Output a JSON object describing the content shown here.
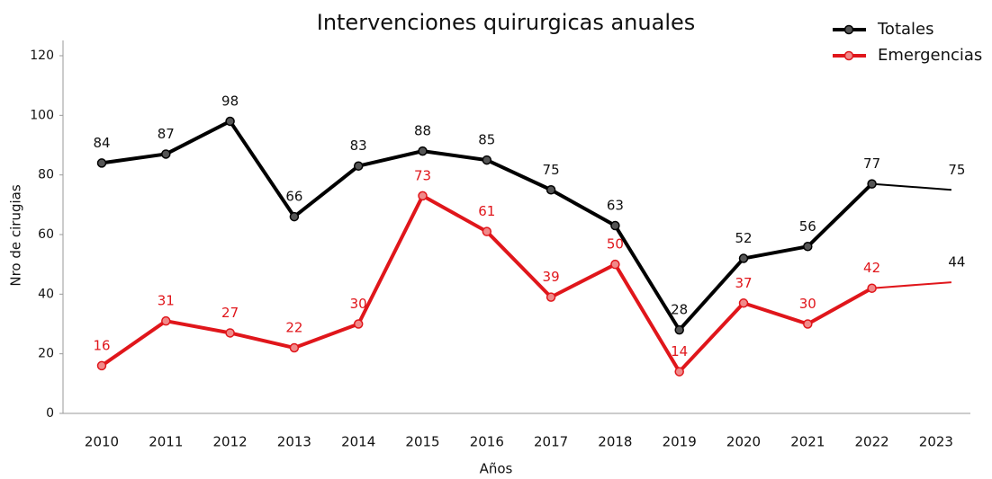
{
  "chart_data": {
    "type": "line",
    "title": "Intervenciones quirurgicas anuales",
    "x_label": "Años",
    "y_label": "Nro de cirugias",
    "categories": [
      "2010",
      "2011",
      "2012",
      "2013",
      "2014",
      "2015",
      "2016",
      "2017",
      "2018",
      "2019",
      "2020",
      "2021",
      "2022",
      "2023"
    ],
    "series": [
      {
        "name": "Totales",
        "color": "#000000",
        "marker": "#555555",
        "values": [
          84,
          87,
          98,
          66,
          83,
          88,
          85,
          75,
          63,
          28,
          52,
          56,
          77,
          75
        ]
      },
      {
        "name": "Emergencias",
        "color": "#e0161b",
        "marker": "#f08a8a",
        "values": [
          16,
          31,
          27,
          22,
          30,
          73,
          61,
          39,
          50,
          14,
          37,
          30,
          42,
          44
        ]
      }
    ],
    "ylim": [
      0,
      120
    ],
    "yticks": [
      0,
      20,
      40,
      60,
      80,
      100,
      120
    ],
    "legend": "top-right"
  }
}
